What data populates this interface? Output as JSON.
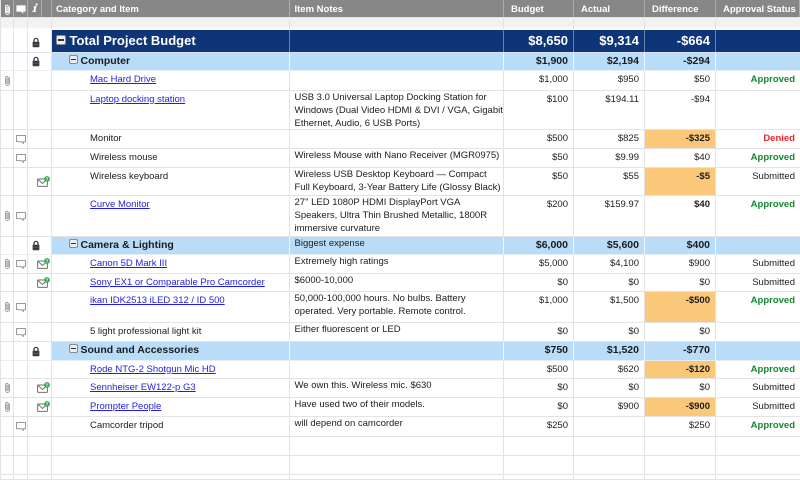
{
  "colors": {
    "navy": "#0d3577",
    "ltblue": "#b9dcf8",
    "orange": "#fbc87a",
    "headerbg": "#878787",
    "grid": "#e3e3e3",
    "link": "#1e1ee4",
    "green": "#15882e",
    "red": "#e8282b",
    "text": "#1c1c1c"
  },
  "header": {
    "attachment_icon": "paperclip-icon",
    "comment_icon": "comment-bubble-icon",
    "info_icon": "i",
    "category": "Category and Item",
    "notes": "Item Notes",
    "budget": "Budget",
    "actual": "Actual",
    "difference": "Difference",
    "approval": "Approval Status"
  },
  "rows": [
    {
      "type": "gap",
      "height": 12,
      "name": "",
      "notes": "",
      "budget": "",
      "actual": "",
      "difference": "",
      "approval": ""
    },
    {
      "type": "total",
      "level": 0,
      "collapse": true,
      "lock": true,
      "height": 23,
      "name": "Total Project Budget",
      "notes": "",
      "budget": "$8,650",
      "actual": "$9,314",
      "difference": "-$664",
      "approval": ""
    },
    {
      "type": "category",
      "level": 1,
      "collapse": true,
      "lock": true,
      "height": 18,
      "name": "Computer",
      "notes": "",
      "budget": "$1,900",
      "actual": "$2,194",
      "difference": "-$294",
      "approval": ""
    },
    {
      "type": "item",
      "level": 2,
      "link": true,
      "attachment": true,
      "height": 20,
      "name": "Mac Hard Drive",
      "notes": "",
      "budget": "$1,000",
      "actual": "$950",
      "difference": "$50",
      "approval": "Approved",
      "approval_style": "approved"
    },
    {
      "type": "item",
      "level": 2,
      "link": true,
      "height": 39,
      "name": "Laptop docking station",
      "notes": "USB 3.0 Universal Laptop Docking Station for Windows (Dual Video HDMI & DVI / VGA, Gigabit Ethernet, Audio, 6 USB Ports)",
      "budget": "$100",
      "actual": "$194.11",
      "difference": "-$94",
      "approval": ""
    },
    {
      "type": "item",
      "level": 2,
      "comment": true,
      "height": 19,
      "name": "Monitor",
      "notes": "",
      "budget": "$500",
      "actual": "$825",
      "difference": "-$325",
      "diff_warn": true,
      "diff_bold": true,
      "approval": "Denied",
      "approval_style": "denied"
    },
    {
      "type": "item",
      "level": 2,
      "comment": true,
      "height": 19,
      "name": "Wireless mouse",
      "notes": "Wireless Mouse with Nano Receiver (MGR0975)",
      "budget": "$50",
      "actual": "$9.99",
      "difference": "$40",
      "approval": "Approved",
      "approval_style": "approved"
    },
    {
      "type": "item",
      "level": 2,
      "envelope": true,
      "height": 28,
      "name": "Wireless keyboard",
      "notes": "Wireless USB Desktop Keyboard — Compact Full Keyboard, 3-Year Battery Life (Glossy Black)",
      "budget": "$50",
      "actual": "$55",
      "difference": "-$5",
      "diff_warn": true,
      "diff_bold": true,
      "approval": "Submitted",
      "approval_style": "submitted"
    },
    {
      "type": "item",
      "level": 2,
      "link": true,
      "attachment": true,
      "comment": true,
      "height": 41,
      "name": "Curve Monitor",
      "notes": "27\" LED 1080P HDMI DisplayPort VGA Speakers, Ultra Thin Brushed Metallic, 1800R immersive curvature",
      "budget": "$200",
      "actual": "$159.97",
      "difference": "$40",
      "diff_bold": true,
      "approval": "Approved",
      "approval_style": "approved"
    },
    {
      "type": "category",
      "level": 1,
      "collapse": true,
      "lock": true,
      "height": 18,
      "name": "Camera & Lighting",
      "notes": "Biggest expense",
      "budget": "$6,000",
      "actual": "$5,600",
      "difference": "$400",
      "approval": ""
    },
    {
      "type": "item",
      "level": 2,
      "link": true,
      "attachment": true,
      "comment": true,
      "envelope": true,
      "height": 19,
      "name": "Canon 5D Mark III",
      "notes": "Extremely high ratings",
      "budget": "$5,000",
      "actual": "$4,100",
      "difference": "$900",
      "approval": "Submitted",
      "approval_style": "submitted"
    },
    {
      "type": "item",
      "level": 2,
      "link": true,
      "envelope": true,
      "height": 18,
      "name": "Sony EX1 or Comparable Pro Camcorder",
      "notes": "$6000-10,000",
      "budget": "$0",
      "actual": "$0",
      "difference": "$0",
      "approval": "Submitted",
      "approval_style": "submitted"
    },
    {
      "type": "item",
      "level": 2,
      "link": true,
      "attachment": true,
      "comment": true,
      "height": 31,
      "name": "ikan IDK2513 iLED 312 / ID 500",
      "notes": "50,000-100,000 hours. No bulbs. Battery operated. Very portable. Remote control.",
      "budget": "$1,000",
      "actual": "$1,500",
      "difference": "-$500",
      "diff_warn": true,
      "diff_bold": true,
      "approval": "Approved",
      "approval_style": "approved"
    },
    {
      "type": "item",
      "level": 2,
      "comment": true,
      "height": 19,
      "name": "5 light professional light kit",
      "notes": "Either fluorescent or LED",
      "budget": "$0",
      "actual": "$0",
      "difference": "$0",
      "approval": ""
    },
    {
      "type": "category",
      "level": 1,
      "collapse": true,
      "lock": true,
      "height": 19,
      "name": "Sound and Accessories",
      "notes": "",
      "budget": "$750",
      "actual": "$1,520",
      "difference": "-$770",
      "approval": ""
    },
    {
      "type": "item",
      "level": 2,
      "link": true,
      "height": 18,
      "name": "Rode NTG-2 Shotgun Mic HD",
      "notes": "",
      "budget": "$500",
      "actual": "$620",
      "difference": "-$120",
      "diff_warn": true,
      "diff_bold": true,
      "approval": "Approved",
      "approval_style": "approved"
    },
    {
      "type": "item",
      "level": 2,
      "link": true,
      "attachment": true,
      "envelope": true,
      "height": 19,
      "name": "Sennheiser EW122-p G3",
      "notes": "We own this. Wireless mic. $630",
      "budget": "$0",
      "actual": "$0",
      "difference": "$0",
      "approval": "Submitted",
      "approval_style": "submitted"
    },
    {
      "type": "item",
      "level": 2,
      "link": true,
      "attachment": true,
      "envelope": true,
      "height": 19,
      "name": "Prompter People",
      "notes": "Have used two of their models.",
      "budget": "$0",
      "actual": "$900",
      "difference": "-$900",
      "diff_warn": true,
      "diff_bold": true,
      "approval": "Submitted",
      "approval_style": "submitted"
    },
    {
      "type": "item",
      "level": 2,
      "comment": true,
      "height": 20,
      "name": "Camcorder tripod",
      "notes": "will depend on camcorder",
      "budget": "$250",
      "actual": "",
      "difference": "$250",
      "approval": "Approved",
      "approval_style": "approved"
    },
    {
      "type": "empty",
      "height": 19,
      "name": "",
      "notes": "",
      "budget": "",
      "actual": "",
      "difference": "",
      "approval": ""
    },
    {
      "type": "empty",
      "height": 19,
      "name": "",
      "notes": "",
      "budget": "",
      "actual": "",
      "difference": "",
      "approval": ""
    },
    {
      "type": "empty",
      "height": 5,
      "name": "",
      "notes": "",
      "budget": "",
      "actual": "",
      "difference": "",
      "approval": ""
    }
  ]
}
